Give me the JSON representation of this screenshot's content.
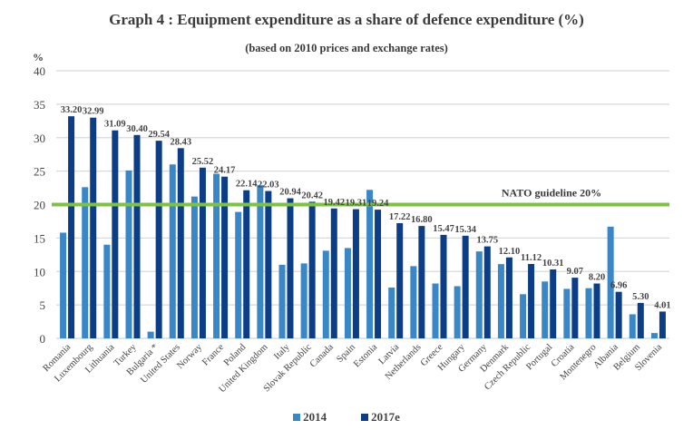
{
  "chart_data": {
    "type": "bar",
    "title": "Graph 4 : Equipment expenditure as a share of defence expenditure (%)",
    "subtitle": "(based on 2010 prices and exchange rates)",
    "ylabel": "%",
    "xlabel": "",
    "ylim": [
      0,
      40
    ],
    "yticks": [
      0,
      5,
      10,
      15,
      20,
      25,
      30,
      35,
      40
    ],
    "grid": true,
    "legend_position": "bottom",
    "categories": [
      "Romania",
      "Luxembourg",
      "Lithuania",
      "Turkey",
      "Bulgaria *",
      "United States",
      "Norway",
      "France",
      "Poland",
      "United Kingdom",
      "Italy",
      "Slovak Republic",
      "Canada",
      "Spain",
      "Estonia",
      "Latvia",
      "Netherlands",
      "Greece",
      "Hungary",
      "Germany",
      "Denmark",
      "Czech Republic",
      "Portugal",
      "Croatia",
      "Montenegro",
      "Albania",
      "Belgium",
      "Slovenia"
    ],
    "series": [
      {
        "name": "2014",
        "color": "#3a87c8",
        "values": [
          15.8,
          22.6,
          14.0,
          25.1,
          1.0,
          26.0,
          21.2,
          24.6,
          18.9,
          22.9,
          11.0,
          11.2,
          13.1,
          13.5,
          22.2,
          7.6,
          10.8,
          8.2,
          7.8,
          13.0,
          11.1,
          6.6,
          8.5,
          7.4,
          7.5,
          16.7,
          3.6,
          0.8
        ]
      },
      {
        "name": "2017e",
        "color": "#0b3e87",
        "values": [
          33.2,
          32.99,
          31.09,
          30.4,
          29.54,
          28.43,
          25.52,
          24.17,
          22.14,
          22.03,
          20.94,
          20.42,
          19.42,
          19.31,
          19.24,
          17.22,
          16.8,
          15.47,
          15.34,
          13.75,
          12.1,
          11.12,
          10.31,
          9.07,
          8.2,
          6.96,
          5.3,
          4.01
        ],
        "labels": [
          "33.20",
          "32.99",
          "31.09",
          "30.40",
          "29.54",
          "28.43",
          "25.52",
          "24.17",
          "22.14",
          "22.03",
          "20.94",
          "20.42",
          "19.42",
          "19.31",
          "19.24",
          "17.22",
          "16.80",
          "15.47",
          "15.34",
          "13.75",
          "12.10",
          "11.12",
          "10.31",
          "9.07",
          "8.20",
          "6.96",
          "5.30",
          "4.01"
        ]
      }
    ],
    "reference_line": {
      "value": 20,
      "label": "NATO guideline 20%",
      "color": "#7dc242"
    }
  }
}
